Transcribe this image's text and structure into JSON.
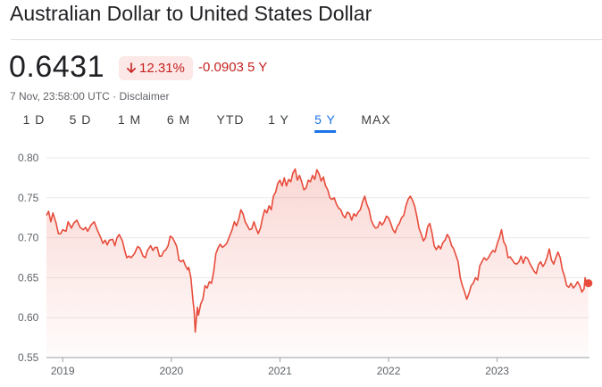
{
  "header": {
    "title": "Australian Dollar to United States Dollar"
  },
  "quote": {
    "price": "0.6431",
    "percent_change": "12.31%",
    "percent_icon": "arrow-down-icon",
    "abs_change": "-0.0903 5 Y",
    "timestamp": "7 Nov, 23:58:00 UTC · ",
    "disclaimer": "Disclaimer"
  },
  "ranges": [
    "1 D",
    "5 D",
    "1 M",
    "6 M",
    "YTD",
    "1 Y",
    "5 Y",
    "MAX"
  ],
  "active_range": "5 Y",
  "colors": {
    "line": "#e74c3c",
    "negative": "#c5221f",
    "badge_bg": "#fce8e6",
    "active_tab": "#1a73e8"
  },
  "chart_data": {
    "type": "area",
    "title": "",
    "xlabel": "",
    "ylabel": "",
    "ylim": [
      0.55,
      0.8
    ],
    "xlim": [
      2018.85,
      2023.85
    ],
    "y_ticks": [
      "0.80",
      "0.75",
      "0.70",
      "0.65",
      "0.60",
      "0.55"
    ],
    "x_ticks": [
      "2019",
      "2020",
      "2021",
      "2022",
      "2023"
    ],
    "grid": true,
    "series": [
      {
        "points": [
          [
            2018.85,
            0.728
          ],
          [
            2018.87,
            0.733
          ],
          [
            2018.89,
            0.72
          ],
          [
            2018.91,
            0.731
          ],
          [
            2018.94,
            0.718
          ],
          [
            2018.96,
            0.705
          ],
          [
            2018.98,
            0.705
          ],
          [
            2019.0,
            0.71
          ],
          [
            2019.03,
            0.708
          ],
          [
            2019.05,
            0.72
          ],
          [
            2019.08,
            0.712
          ],
          [
            2019.1,
            0.718
          ],
          [
            2019.13,
            0.722
          ],
          [
            2019.16,
            0.713
          ],
          [
            2019.19,
            0.71
          ],
          [
            2019.21,
            0.713
          ],
          [
            2019.23,
            0.708
          ],
          [
            2019.26,
            0.716
          ],
          [
            2019.29,
            0.72
          ],
          [
            2019.32,
            0.709
          ],
          [
            2019.35,
            0.7
          ],
          [
            2019.37,
            0.693
          ],
          [
            2019.39,
            0.697
          ],
          [
            2019.41,
            0.691
          ],
          [
            2019.43,
            0.697
          ],
          [
            2019.46,
            0.698
          ],
          [
            2019.48,
            0.69
          ],
          [
            2019.5,
            0.7
          ],
          [
            2019.52,
            0.704
          ],
          [
            2019.55,
            0.696
          ],
          [
            2019.57,
            0.684
          ],
          [
            2019.59,
            0.675
          ],
          [
            2019.61,
            0.677
          ],
          [
            2019.63,
            0.675
          ],
          [
            2019.66,
            0.68
          ],
          [
            2019.69,
            0.689
          ],
          [
            2019.71,
            0.687
          ],
          [
            2019.74,
            0.677
          ],
          [
            2019.76,
            0.675
          ],
          [
            2019.78,
            0.684
          ],
          [
            2019.81,
            0.69
          ],
          [
            2019.83,
            0.684
          ],
          [
            2019.85,
            0.688
          ],
          [
            2019.87,
            0.688
          ],
          [
            2019.89,
            0.677
          ],
          [
            2019.91,
            0.677
          ],
          [
            2019.93,
            0.683
          ],
          [
            2019.95,
            0.685
          ],
          [
            2019.97,
            0.69
          ],
          [
            2019.99,
            0.702
          ],
          [
            2020.01,
            0.7
          ],
          [
            2020.03,
            0.695
          ],
          [
            2020.05,
            0.689
          ],
          [
            2020.07,
            0.672
          ],
          [
            2020.09,
            0.67
          ],
          [
            2020.11,
            0.672
          ],
          [
            2020.13,
            0.665
          ],
          [
            2020.15,
            0.66
          ],
          [
            2020.16,
            0.663
          ],
          [
            2020.18,
            0.65
          ],
          [
            2020.2,
            0.62
          ],
          [
            2020.21,
            0.608
          ],
          [
            2020.22,
            0.582
          ],
          [
            2020.23,
            0.598
          ],
          [
            2020.24,
            0.613
          ],
          [
            2020.25,
            0.603
          ],
          [
            2020.27,
            0.617
          ],
          [
            2020.29,
            0.623
          ],
          [
            2020.31,
            0.64
          ],
          [
            2020.33,
            0.637
          ],
          [
            2020.35,
            0.645
          ],
          [
            2020.37,
            0.643
          ],
          [
            2020.39,
            0.658
          ],
          [
            2020.41,
            0.68
          ],
          [
            2020.43,
            0.687
          ],
          [
            2020.45,
            0.692
          ],
          [
            2020.47,
            0.688
          ],
          [
            2020.49,
            0.69
          ],
          [
            2020.51,
            0.693
          ],
          [
            2020.53,
            0.7
          ],
          [
            2020.56,
            0.71
          ],
          [
            2020.58,
            0.72
          ],
          [
            2020.6,
            0.715
          ],
          [
            2020.62,
            0.723
          ],
          [
            2020.64,
            0.735
          ],
          [
            2020.66,
            0.73
          ],
          [
            2020.68,
            0.72
          ],
          [
            2020.7,
            0.715
          ],
          [
            2020.72,
            0.71
          ],
          [
            2020.74,
            0.711
          ],
          [
            2020.76,
            0.72
          ],
          [
            2020.78,
            0.712
          ],
          [
            2020.8,
            0.705
          ],
          [
            2020.82,
            0.712
          ],
          [
            2020.84,
            0.725
          ],
          [
            2020.86,
            0.735
          ],
          [
            2020.88,
            0.731
          ],
          [
            2020.9,
            0.74
          ],
          [
            2020.92,
            0.735
          ],
          [
            2020.94,
            0.752
          ],
          [
            2020.96,
            0.757
          ],
          [
            2020.98,
            0.768
          ],
          [
            2021.0,
            0.772
          ],
          [
            2021.02,
            0.765
          ],
          [
            2021.04,
            0.775
          ],
          [
            2021.06,
            0.765
          ],
          [
            2021.08,
            0.773
          ],
          [
            2021.1,
            0.77
          ],
          [
            2021.12,
            0.781
          ],
          [
            2021.14,
            0.786
          ],
          [
            2021.16,
            0.772
          ],
          [
            2021.18,
            0.778
          ],
          [
            2021.2,
            0.77
          ],
          [
            2021.22,
            0.76
          ],
          [
            2021.24,
            0.762
          ],
          [
            2021.26,
            0.772
          ],
          [
            2021.28,
            0.77
          ],
          [
            2021.3,
            0.778
          ],
          [
            2021.32,
            0.773
          ],
          [
            2021.34,
            0.785
          ],
          [
            2021.36,
            0.78
          ],
          [
            2021.38,
            0.771
          ],
          [
            2021.4,
            0.776
          ],
          [
            2021.42,
            0.765
          ],
          [
            2021.44,
            0.76
          ],
          [
            2021.46,
            0.75
          ],
          [
            2021.48,
            0.748
          ],
          [
            2021.5,
            0.75
          ],
          [
            2021.52,
            0.742
          ],
          [
            2021.54,
            0.737
          ],
          [
            2021.56,
            0.735
          ],
          [
            2021.58,
            0.728
          ],
          [
            2021.6,
            0.725
          ],
          [
            2021.62,
            0.732
          ],
          [
            2021.64,
            0.73
          ],
          [
            2021.66,
            0.722
          ],
          [
            2021.68,
            0.73
          ],
          [
            2021.7,
            0.727
          ],
          [
            2021.72,
            0.732
          ],
          [
            2021.74,
            0.735
          ],
          [
            2021.76,
            0.745
          ],
          [
            2021.78,
            0.752
          ],
          [
            2021.8,
            0.742
          ],
          [
            2021.82,
            0.735
          ],
          [
            2021.84,
            0.722
          ],
          [
            2021.86,
            0.716
          ],
          [
            2021.88,
            0.712
          ],
          [
            2021.9,
            0.713
          ],
          [
            2021.92,
            0.72
          ],
          [
            2021.94,
            0.716
          ],
          [
            2021.96,
            0.72
          ],
          [
            2021.98,
            0.727
          ],
          [
            2022.0,
            0.725
          ],
          [
            2022.02,
            0.718
          ],
          [
            2022.04,
            0.71
          ],
          [
            2022.06,
            0.706
          ],
          [
            2022.08,
            0.714
          ],
          [
            2022.1,
            0.718
          ],
          [
            2022.12,
            0.725
          ],
          [
            2022.14,
            0.728
          ],
          [
            2022.16,
            0.74
          ],
          [
            2022.18,
            0.748
          ],
          [
            2022.2,
            0.752
          ],
          [
            2022.22,
            0.747
          ],
          [
            2022.24,
            0.74
          ],
          [
            2022.26,
            0.727
          ],
          [
            2022.28,
            0.712
          ],
          [
            2022.3,
            0.705
          ],
          [
            2022.32,
            0.696
          ],
          [
            2022.34,
            0.7
          ],
          [
            2022.36,
            0.714
          ],
          [
            2022.38,
            0.718
          ],
          [
            2022.4,
            0.706
          ],
          [
            2022.42,
            0.69
          ],
          [
            2022.44,
            0.685
          ],
          [
            2022.46,
            0.69
          ],
          [
            2022.48,
            0.686
          ],
          [
            2022.5,
            0.694
          ],
          [
            2022.52,
            0.697
          ],
          [
            2022.54,
            0.704
          ],
          [
            2022.56,
            0.7
          ],
          [
            2022.58,
            0.69
          ],
          [
            2022.6,
            0.686
          ],
          [
            2022.62,
            0.678
          ],
          [
            2022.64,
            0.67
          ],
          [
            2022.66,
            0.65
          ],
          [
            2022.68,
            0.64
          ],
          [
            2022.7,
            0.632
          ],
          [
            2022.72,
            0.623
          ],
          [
            2022.74,
            0.63
          ],
          [
            2022.76,
            0.64
          ],
          [
            2022.78,
            0.643
          ],
          [
            2022.8,
            0.65
          ],
          [
            2022.82,
            0.647
          ],
          [
            2022.84,
            0.665
          ],
          [
            2022.86,
            0.67
          ],
          [
            2022.88,
            0.675
          ],
          [
            2022.9,
            0.672
          ],
          [
            2022.92,
            0.675
          ],
          [
            2022.94,
            0.68
          ],
          [
            2022.96,
            0.684
          ],
          [
            2022.98,
            0.682
          ],
          [
            2023.0,
            0.692
          ],
          [
            2023.02,
            0.7
          ],
          [
            2023.04,
            0.71
          ],
          [
            2023.06,
            0.695
          ],
          [
            2023.08,
            0.69
          ],
          [
            2023.1,
            0.675
          ],
          [
            2023.12,
            0.676
          ],
          [
            2023.14,
            0.672
          ],
          [
            2023.16,
            0.668
          ],
          [
            2023.18,
            0.667
          ],
          [
            2023.2,
            0.67
          ],
          [
            2023.22,
            0.677
          ],
          [
            2023.24,
            0.668
          ],
          [
            2023.26,
            0.676
          ],
          [
            2023.28,
            0.674
          ],
          [
            2023.3,
            0.668
          ],
          [
            2023.32,
            0.663
          ],
          [
            2023.34,
            0.658
          ],
          [
            2023.36,
            0.655
          ],
          [
            2023.38,
            0.666
          ],
          [
            2023.4,
            0.67
          ],
          [
            2023.42,
            0.664
          ],
          [
            2023.44,
            0.668
          ],
          [
            2023.46,
            0.676
          ],
          [
            2023.48,
            0.686
          ],
          [
            2023.5,
            0.672
          ],
          [
            2023.52,
            0.667
          ],
          [
            2023.54,
            0.675
          ],
          [
            2023.56,
            0.682
          ],
          [
            2023.58,
            0.675
          ],
          [
            2023.6,
            0.66
          ],
          [
            2023.62,
            0.652
          ],
          [
            2023.64,
            0.64
          ],
          [
            2023.66,
            0.638
          ],
          [
            2023.68,
            0.643
          ],
          [
            2023.7,
            0.637
          ],
          [
            2023.72,
            0.64
          ],
          [
            2023.74,
            0.645
          ],
          [
            2023.76,
            0.64
          ],
          [
            2023.78,
            0.632
          ],
          [
            2023.8,
            0.636
          ],
          [
            2023.81,
            0.65
          ],
          [
            2023.82,
            0.64
          ],
          [
            2023.84,
            0.6431
          ]
        ]
      }
    ]
  }
}
